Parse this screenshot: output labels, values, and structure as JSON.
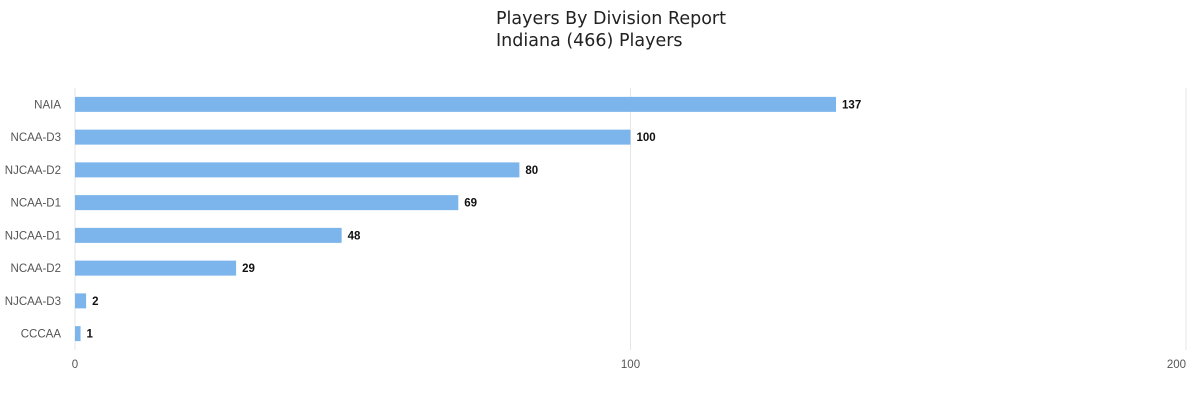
{
  "chart_data": {
    "type": "bar",
    "orientation": "horizontal",
    "title": "Players By Division Report",
    "subtitle": "Indiana (466) Players",
    "categories": [
      "NAIA",
      "NCAA-D3",
      "NJCAA-D2",
      "NCAA-D1",
      "NJCAA-D1",
      "NCAA-D2",
      "NJCAA-D3",
      "CCCAA"
    ],
    "values": [
      137,
      100,
      80,
      69,
      48,
      29,
      2,
      1
    ],
    "xlabel": "",
    "ylabel": "",
    "xlim": [
      0,
      200
    ],
    "xticks": [
      0,
      100,
      200
    ],
    "grid": true,
    "legend": "none",
    "bar_color": "#7cb5ec"
  }
}
